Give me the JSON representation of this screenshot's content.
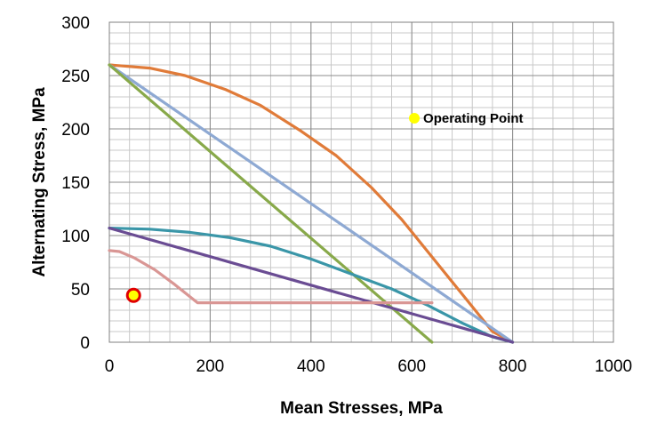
{
  "chart_data": {
    "type": "line",
    "xlabel": "Mean Stresses, MPa",
    "ylabel": "Alternating Stress, MPa",
    "xlim": [
      0,
      1000
    ],
    "ylim": [
      0,
      300
    ],
    "x_ticks": [
      0,
      200,
      400,
      600,
      800,
      1000
    ],
    "y_ticks": [
      0,
      50,
      100,
      150,
      200,
      250,
      300
    ],
    "x_tick_labels": [
      "0",
      "200",
      "400",
      "600",
      "800",
      "1000"
    ],
    "y_tick_labels": [
      "0",
      "50",
      "100",
      "150",
      "200",
      "250",
      "300"
    ],
    "grid": true,
    "minor_grid_x_step": 40,
    "minor_grid_y_step": 10,
    "series": [
      {
        "color": "#E07B39",
        "points": [
          [
            0,
            260
          ],
          [
            80,
            257
          ],
          [
            150,
            250
          ],
          [
            230,
            237
          ],
          [
            300,
            222
          ],
          [
            380,
            198
          ],
          [
            450,
            175
          ],
          [
            520,
            145
          ],
          [
            580,
            115
          ],
          [
            640,
            80
          ],
          [
            700,
            45
          ],
          [
            760,
            10
          ],
          [
            800,
            0
          ]
        ]
      },
      {
        "color": "#8EA9D3",
        "points": [
          [
            0,
            260
          ],
          [
            800,
            0
          ]
        ]
      },
      {
        "color": "#88A94A",
        "points": [
          [
            0,
            260
          ],
          [
            640,
            0
          ]
        ]
      },
      {
        "color": "#3A96A8",
        "points": [
          [
            0,
            107
          ],
          [
            80,
            106
          ],
          [
            160,
            103
          ],
          [
            240,
            98
          ],
          [
            320,
            90
          ],
          [
            400,
            78
          ],
          [
            480,
            64
          ],
          [
            560,
            50
          ],
          [
            630,
            35
          ],
          [
            700,
            18
          ],
          [
            760,
            5
          ],
          [
            800,
            0
          ]
        ]
      },
      {
        "color": "#6A4C93",
        "points": [
          [
            0,
            107
          ],
          [
            800,
            0
          ]
        ]
      },
      {
        "color": "#D99694",
        "points": [
          [
            0,
            86
          ],
          [
            20,
            85
          ],
          [
            50,
            79
          ],
          [
            90,
            68
          ],
          [
            130,
            54
          ],
          [
            175,
            37
          ],
          [
            640,
            37
          ]
        ]
      }
    ],
    "points": [
      {
        "x": 48,
        "y": 44,
        "fill": "#FFFF00",
        "stroke": "#E00000"
      },
      {
        "x": 605,
        "y": 210,
        "fill": "#FFFF00",
        "stroke": "#FFFF00",
        "label": "Operating Point"
      }
    ]
  }
}
